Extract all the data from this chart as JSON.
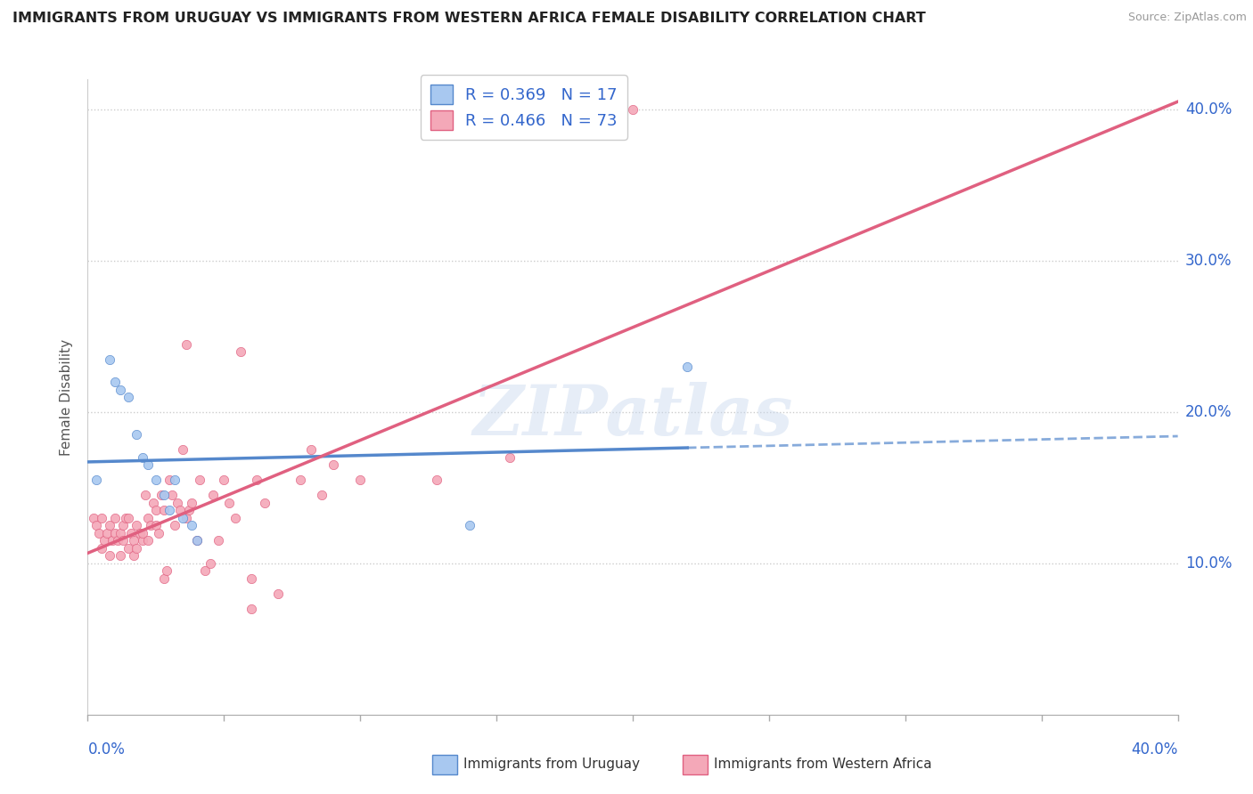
{
  "title": "IMMIGRANTS FROM URUGUAY VS IMMIGRANTS FROM WESTERN AFRICA FEMALE DISABILITY CORRELATION CHART",
  "source": "Source: ZipAtlas.com",
  "ylabel": "Female Disability",
  "xmin": 0.0,
  "xmax": 0.4,
  "ymin": 0.0,
  "ymax": 0.42,
  "watermark": "ZIPatlas",
  "legend1_label": "R = 0.369   N = 17",
  "legend2_label": "R = 0.466   N = 73",
  "uruguay_color": "#a8c8f0",
  "western_africa_color": "#f4a8b8",
  "uruguay_line_color": "#5588cc",
  "western_africa_line_color": "#e06080",
  "uruguay_scatter": [
    [
      0.003,
      0.155
    ],
    [
      0.008,
      0.235
    ],
    [
      0.01,
      0.22
    ],
    [
      0.012,
      0.215
    ],
    [
      0.015,
      0.21
    ],
    [
      0.018,
      0.185
    ],
    [
      0.02,
      0.17
    ],
    [
      0.022,
      0.165
    ],
    [
      0.025,
      0.155
    ],
    [
      0.028,
      0.145
    ],
    [
      0.03,
      0.135
    ],
    [
      0.032,
      0.155
    ],
    [
      0.035,
      0.13
    ],
    [
      0.038,
      0.125
    ],
    [
      0.04,
      0.115
    ],
    [
      0.14,
      0.125
    ],
    [
      0.22,
      0.23
    ]
  ],
  "western_africa_scatter": [
    [
      0.002,
      0.13
    ],
    [
      0.003,
      0.125
    ],
    [
      0.004,
      0.12
    ],
    [
      0.005,
      0.13
    ],
    [
      0.005,
      0.11
    ],
    [
      0.006,
      0.115
    ],
    [
      0.007,
      0.12
    ],
    [
      0.008,
      0.125
    ],
    [
      0.008,
      0.105
    ],
    [
      0.009,
      0.115
    ],
    [
      0.01,
      0.12
    ],
    [
      0.01,
      0.13
    ],
    [
      0.011,
      0.115
    ],
    [
      0.012,
      0.105
    ],
    [
      0.012,
      0.12
    ],
    [
      0.013,
      0.125
    ],
    [
      0.013,
      0.115
    ],
    [
      0.014,
      0.13
    ],
    [
      0.015,
      0.11
    ],
    [
      0.015,
      0.13
    ],
    [
      0.016,
      0.12
    ],
    [
      0.017,
      0.115
    ],
    [
      0.017,
      0.105
    ],
    [
      0.018,
      0.11
    ],
    [
      0.018,
      0.125
    ],
    [
      0.019,
      0.12
    ],
    [
      0.02,
      0.115
    ],
    [
      0.02,
      0.12
    ],
    [
      0.021,
      0.145
    ],
    [
      0.022,
      0.13
    ],
    [
      0.022,
      0.115
    ],
    [
      0.023,
      0.125
    ],
    [
      0.024,
      0.14
    ],
    [
      0.025,
      0.135
    ],
    [
      0.025,
      0.125
    ],
    [
      0.026,
      0.12
    ],
    [
      0.027,
      0.145
    ],
    [
      0.028,
      0.135
    ],
    [
      0.028,
      0.09
    ],
    [
      0.029,
      0.095
    ],
    [
      0.03,
      0.155
    ],
    [
      0.031,
      0.145
    ],
    [
      0.032,
      0.125
    ],
    [
      0.033,
      0.14
    ],
    [
      0.034,
      0.135
    ],
    [
      0.035,
      0.175
    ],
    [
      0.036,
      0.13
    ],
    [
      0.036,
      0.245
    ],
    [
      0.037,
      0.135
    ],
    [
      0.038,
      0.14
    ],
    [
      0.04,
      0.115
    ],
    [
      0.041,
      0.155
    ],
    [
      0.043,
      0.095
    ],
    [
      0.045,
      0.1
    ],
    [
      0.046,
      0.145
    ],
    [
      0.048,
      0.115
    ],
    [
      0.05,
      0.155
    ],
    [
      0.052,
      0.14
    ],
    [
      0.054,
      0.13
    ],
    [
      0.056,
      0.24
    ],
    [
      0.06,
      0.09
    ],
    [
      0.06,
      0.07
    ],
    [
      0.062,
      0.155
    ],
    [
      0.065,
      0.14
    ],
    [
      0.07,
      0.08
    ],
    [
      0.078,
      0.155
    ],
    [
      0.082,
      0.175
    ],
    [
      0.086,
      0.145
    ],
    [
      0.09,
      0.165
    ],
    [
      0.1,
      0.155
    ],
    [
      0.128,
      0.155
    ],
    [
      0.155,
      0.17
    ],
    [
      0.2,
      0.4
    ]
  ],
  "grid_color": "#cccccc",
  "grid_style": "dotted",
  "background_color": "#ffffff",
  "right_labels": [
    [
      0.1,
      "10.0%"
    ],
    [
      0.2,
      "20.0%"
    ],
    [
      0.3,
      "30.0%"
    ],
    [
      0.4,
      "40.0%"
    ]
  ],
  "bottom_left_label": "0.0%",
  "bottom_right_label": "40.0%"
}
